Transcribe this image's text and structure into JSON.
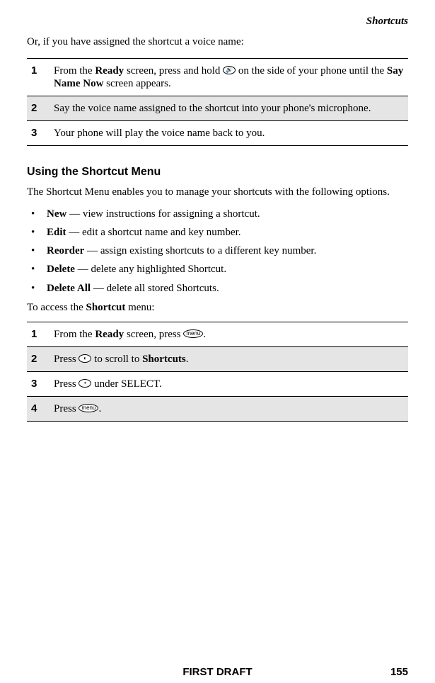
{
  "header": {
    "section_label": "Shortcuts"
  },
  "intro1": "Or, if you have assigned the shortcut a voice name:",
  "table1": {
    "rows": [
      {
        "num": "1",
        "prefix": "From the ",
        "bold1": "Ready",
        "mid1": " screen, press and hold ",
        "icon": "🔊",
        "mid2": " on the side of your phone until the ",
        "bold2": "Say Name Now",
        "suffix": " screen appears."
      },
      {
        "num": "2",
        "text": "Say the voice name assigned to the shortcut into your phone's microphone."
      },
      {
        "num": "3",
        "text": "Your phone will play the voice name back to you."
      }
    ]
  },
  "subheading": "Using the Shortcut Menu",
  "intro2": "The Shortcut Menu enables you to manage your shortcuts with the following options.",
  "options": [
    {
      "label": "New",
      "desc": " — view instructions for assigning a shortcut."
    },
    {
      "label": "Edit",
      "desc": " — edit a shortcut name and key number."
    },
    {
      "label": "Reorder",
      "desc": " — assign existing shortcuts to a different key number."
    },
    {
      "label": "Delete",
      "desc": " — delete any highlighted Shortcut."
    },
    {
      "label": "Delete All",
      "desc": " — delete all stored Shortcuts."
    }
  ],
  "intro3_pre": "To access the ",
  "intro3_bold": "Shortcut",
  "intro3_post": " menu:",
  "table2": {
    "rows": [
      {
        "num": "1",
        "pre": "From the ",
        "bold": "Ready",
        "mid": " screen, press ",
        "icon": "menu",
        "post": "."
      },
      {
        "num": "2",
        "pre": "Press ",
        "icon": "◐",
        "mid": " to scroll to ",
        "bold": "Shortcuts",
        "post": "."
      },
      {
        "num": "3",
        "pre": "Press ",
        "icon": "•",
        "post": " under SELECT."
      },
      {
        "num": "4",
        "pre": "Press ",
        "icon": "menu",
        "post": "."
      }
    ]
  },
  "footer": {
    "center": "FIRST DRAFT",
    "page": "155"
  },
  "colors": {
    "shade": "#e5e5e5",
    "text": "#000000",
    "bg": "#ffffff"
  }
}
